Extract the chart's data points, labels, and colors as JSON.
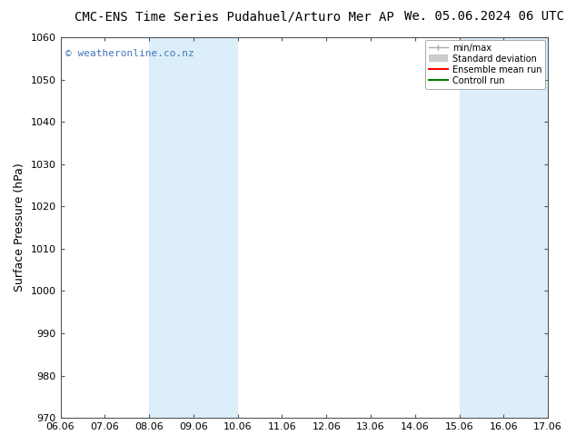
{
  "title_left": "CMC-ENS Time Series Pudahuel/Arturo Mer AP",
  "title_right": "We. 05.06.2024 06 UTC",
  "ylabel": "Surface Pressure (hPa)",
  "ylim": [
    970,
    1060
  ],
  "yticks": [
    970,
    980,
    990,
    1000,
    1010,
    1020,
    1030,
    1040,
    1050,
    1060
  ],
  "xtick_labels": [
    "06.06",
    "07.06",
    "08.06",
    "09.06",
    "10.06",
    "11.06",
    "12.06",
    "13.06",
    "14.06",
    "15.06",
    "16.06",
    "17.06"
  ],
  "x_values": [
    0,
    1,
    2,
    3,
    4,
    5,
    6,
    7,
    8,
    9,
    10,
    11
  ],
  "shaded_regions": [
    {
      "xmin": 2,
      "xmax": 3,
      "color": "#dceef9"
    },
    {
      "xmin": 3,
      "xmax": 4,
      "color": "#dceef9"
    },
    {
      "xmin": 9,
      "xmax": 10,
      "color": "#dceef9"
    },
    {
      "xmin": 10,
      "xmax": 11,
      "color": "#dceef9"
    }
  ],
  "watermark_text": "© weatheronline.co.nz",
  "watermark_color": "#4477bb",
  "watermark_fontsize": 8,
  "legend_items": [
    {
      "label": "min/max",
      "color": "#aaaaaa",
      "lw": 1.5
    },
    {
      "label": "Standard deviation",
      "color": "#bbbbbb",
      "lw": 6
    },
    {
      "label": "Ensemble mean run",
      "color": "red",
      "lw": 1.5
    },
    {
      "label": "Controll run",
      "color": "green",
      "lw": 1.5
    }
  ],
  "background_color": "#ffffff",
  "grid_color": "#dddddd",
  "title_fontsize": 10,
  "axis_label_fontsize": 9,
  "tick_fontsize": 8
}
